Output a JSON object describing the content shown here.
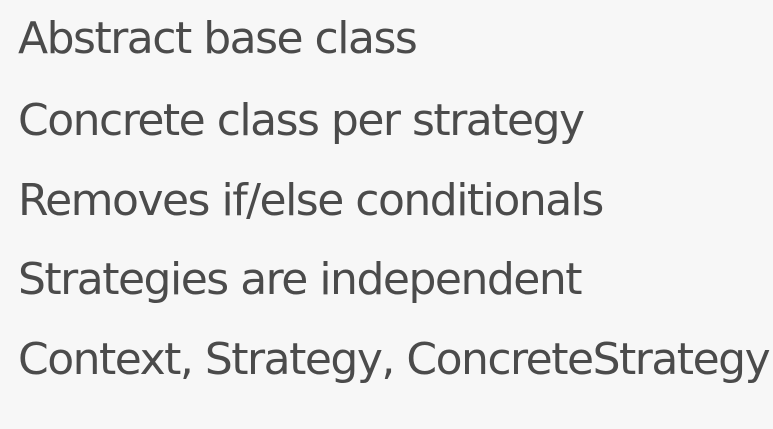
{
  "slide": {
    "bullets": [
      "Abstract base class",
      "Concrete class per strategy",
      "Removes if/else conditionals",
      "Strategies are independent",
      "Context, Strategy, ConcreteStrategy"
    ]
  },
  "colors": {
    "background": "#f7f7f7",
    "text": "#4b4b4b"
  }
}
